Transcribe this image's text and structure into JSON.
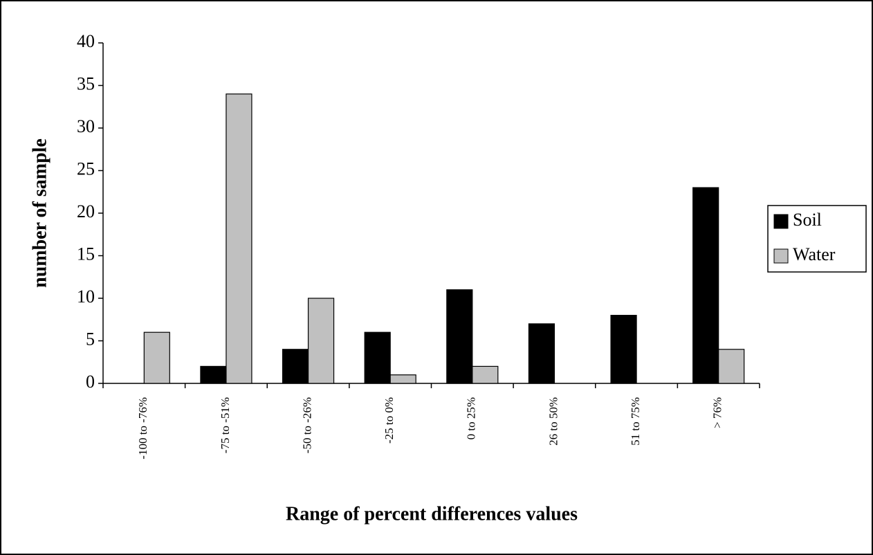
{
  "chart_data": {
    "type": "bar",
    "x_label": "Range of percent differences values",
    "y_label": "number of sample",
    "categories": [
      "-100 to -76%",
      "-75 to -51%",
      "-50 to -26%",
      "-25 to 0%",
      "0 to 25%",
      "26 to 50%",
      "51 to 75%",
      "> 76%"
    ],
    "series": [
      {
        "name": "Soil",
        "color": "#000000",
        "values": [
          0,
          2,
          4,
          6,
          11,
          7,
          8,
          23
        ]
      },
      {
        "name": "Water",
        "color": "#c0c0c0",
        "values": [
          6,
          34,
          10,
          1,
          2,
          0,
          0,
          4
        ]
      }
    ],
    "ylim": [
      0,
      40
    ],
    "yticks": [
      0,
      5,
      10,
      15,
      20,
      25,
      30,
      35,
      40
    ],
    "grid": false,
    "legend": "right"
  }
}
